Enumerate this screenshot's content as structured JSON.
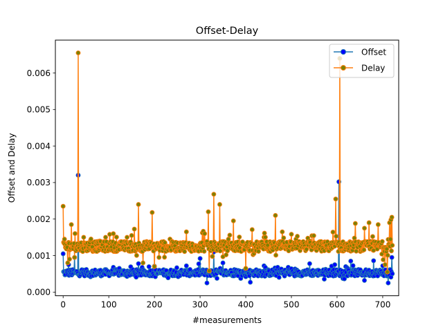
{
  "chart_data": {
    "type": "line",
    "title": "Offset-Delay",
    "xlabel": "#measurements",
    "ylabel": "Offset and Delay",
    "xlim": [
      -17,
      735
    ],
    "ylim": [
      -0.0001,
      0.0069
    ],
    "xticks": [
      0,
      100,
      200,
      300,
      400,
      500,
      600,
      700
    ],
    "xtick_labels": [
      "0",
      "100",
      "200",
      "300",
      "400",
      "500",
      "600",
      "700"
    ],
    "yticks": [
      0.0,
      0.001,
      0.002,
      0.003,
      0.004,
      0.005,
      0.006
    ],
    "ytick_labels": [
      "0.000",
      "0.001",
      "0.002",
      "0.003",
      "0.004",
      "0.005",
      "0.006"
    ],
    "grid": false,
    "legend_position": "top-right",
    "n_points": 722,
    "series": [
      {
        "name": "Offset",
        "line_color": "#1f77b4",
        "marker_face": "#0000ff",
        "marker_edge": "#1f77b4",
        "baseline": 0.00053,
        "spikes": [
          [
            0,
            0.00105
          ],
          [
            5,
            0.00048
          ],
          [
            12,
            0.00075
          ],
          [
            25,
            0.00095
          ],
          [
            33,
            0.0032
          ],
          [
            60,
            0.00042
          ],
          [
            110,
            0.00068
          ],
          [
            165,
            0.00078
          ],
          [
            200,
            0.00071
          ],
          [
            230,
            0.00039
          ],
          [
            270,
            0.00072
          ],
          [
            300,
            0.00092
          ],
          [
            315,
            0.00025
          ],
          [
            330,
            0.0011
          ],
          [
            350,
            0.0008
          ],
          [
            380,
            0.00048
          ],
          [
            410,
            0.00027
          ],
          [
            440,
            0.00072
          ],
          [
            470,
            0.00068
          ],
          [
            500,
            0.00064
          ],
          [
            540,
            0.00078
          ],
          [
            595,
            0.00075
          ],
          [
            604,
            0.00302
          ],
          [
            630,
            0.00085
          ],
          [
            660,
            0.00032
          ],
          [
            680,
            0.00086
          ],
          [
            700,
            0.00072
          ],
          [
            712,
            0.00025
          ],
          [
            718,
            0.00041
          ],
          [
            720,
            0.00095
          ]
        ]
      },
      {
        "name": "Delay",
        "line_color": "#ff7f0e",
        "marker_face": "#808000",
        "marker_edge": "#ff7f0e",
        "baseline": 0.00125,
        "spikes": [
          [
            0,
            0.00235
          ],
          [
            3,
            0.00145
          ],
          [
            10,
            0.0008
          ],
          [
            18,
            0.00185
          ],
          [
            25,
            0.00095
          ],
          [
            33,
            0.00655
          ],
          [
            45,
            0.0015
          ],
          [
            80,
            0.0014
          ],
          [
            110,
            0.0016
          ],
          [
            140,
            0.0015
          ],
          [
            150,
            0.00155
          ],
          [
            165,
            0.0024
          ],
          [
            175,
            0.0008
          ],
          [
            195,
            0.00218
          ],
          [
            200,
            0.0007
          ],
          [
            210,
            0.00095
          ],
          [
            250,
            0.0012
          ],
          [
            270,
            0.00165
          ],
          [
            310,
            0.0016
          ],
          [
            318,
            0.0022
          ],
          [
            320,
            0.00058
          ],
          [
            330,
            0.00268
          ],
          [
            343,
            0.0024
          ],
          [
            362,
            0.00145
          ],
          [
            373,
            0.00195
          ],
          [
            400,
            0.00065
          ],
          [
            440,
            0.0015
          ],
          [
            465,
            0.0021
          ],
          [
            480,
            0.00165
          ],
          [
            510,
            0.00145
          ],
          [
            540,
            0.0014
          ],
          [
            560,
            0.0013
          ],
          [
            597,
            0.00255
          ],
          [
            606,
            0.0064
          ],
          [
            615,
            0.0013
          ],
          [
            640,
            0.00188
          ],
          [
            660,
            0.00175
          ],
          [
            670,
            0.0019
          ],
          [
            690,
            0.00185
          ],
          [
            705,
            0.00075
          ],
          [
            710,
            0.00055
          ],
          [
            715,
            0.0019
          ],
          [
            718,
            0.00198
          ],
          [
            720,
            0.00205
          ],
          [
            721,
            0.00128
          ]
        ]
      }
    ]
  }
}
